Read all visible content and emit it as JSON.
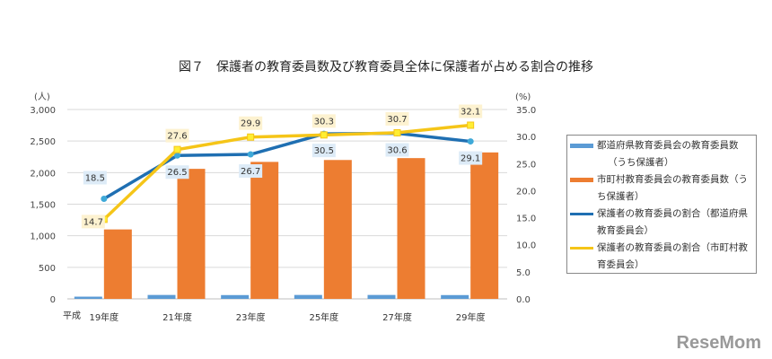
{
  "title": "図７　保護者の教育委員数及び教育委員全体に保護者が占める割合の推移",
  "chart_data": {
    "type": "bar+line",
    "categories": [
      "19年度",
      "21年度",
      "23年度",
      "25年度",
      "27年度",
      "29年度"
    ],
    "category_prefix": "平成",
    "left_axis": {
      "unit": "(人)",
      "range": [
        0,
        3000
      ],
      "ticks": [
        "0",
        "500",
        "1,000",
        "1,500",
        "2,000",
        "2,500",
        "3,000"
      ]
    },
    "right_axis": {
      "unit": "(%)",
      "range": [
        0,
        35
      ],
      "ticks": [
        "0.0",
        "5.0",
        "10.0",
        "15.0",
        "20.0",
        "25.0",
        "30.0",
        "35.0"
      ]
    },
    "grid": true,
    "legend_position": "right",
    "series": [
      {
        "name": "都道府県教育委員会の教育委員数（うち保護者）",
        "type": "bar",
        "axis": "left",
        "color": "#5B9BD5",
        "values": [
          35,
          62,
          60,
          62,
          62,
          60
        ]
      },
      {
        "name": "市町村教育委員会の教育委員数（うち保護者）",
        "type": "bar",
        "axis": "left",
        "color": "#ED7D31",
        "values": [
          1100,
          2060,
          2170,
          2200,
          2230,
          2320
        ]
      },
      {
        "name": "保護者の教育委員の割合（都道府県教育委員会）",
        "type": "line",
        "axis": "right",
        "color": "#1F6FB2",
        "values": [
          18.5,
          26.5,
          26.7,
          30.5,
          30.6,
          29.1
        ],
        "labels": [
          "18.5",
          "26.5",
          "26.7",
          "30.5",
          "30.6",
          "29.1"
        ]
      },
      {
        "name": "保護者の教育委員の割合（市町村教育委員会）",
        "type": "line",
        "axis": "right",
        "color": "#F5C518",
        "values": [
          14.7,
          27.6,
          29.9,
          30.3,
          30.7,
          32.1
        ],
        "labels": [
          "14.7",
          "27.6",
          "29.9",
          "30.3",
          "30.7",
          "32.1"
        ]
      }
    ]
  },
  "legend": [
    {
      "line1": "都道府県教育委員会の教育委員数",
      "line2": "（うち保護者）"
    },
    {
      "line1": "市町村教育委員会の教育委員数（う",
      "line2": "ち保護者）"
    },
    {
      "line1": "保護者の教育委員の割合（都道府県",
      "line2": "教育委員会）"
    },
    {
      "line1": "保護者の教育委員の割合（市町村教",
      "line2": "育委員会）"
    }
  ],
  "logo": "ReseMom"
}
